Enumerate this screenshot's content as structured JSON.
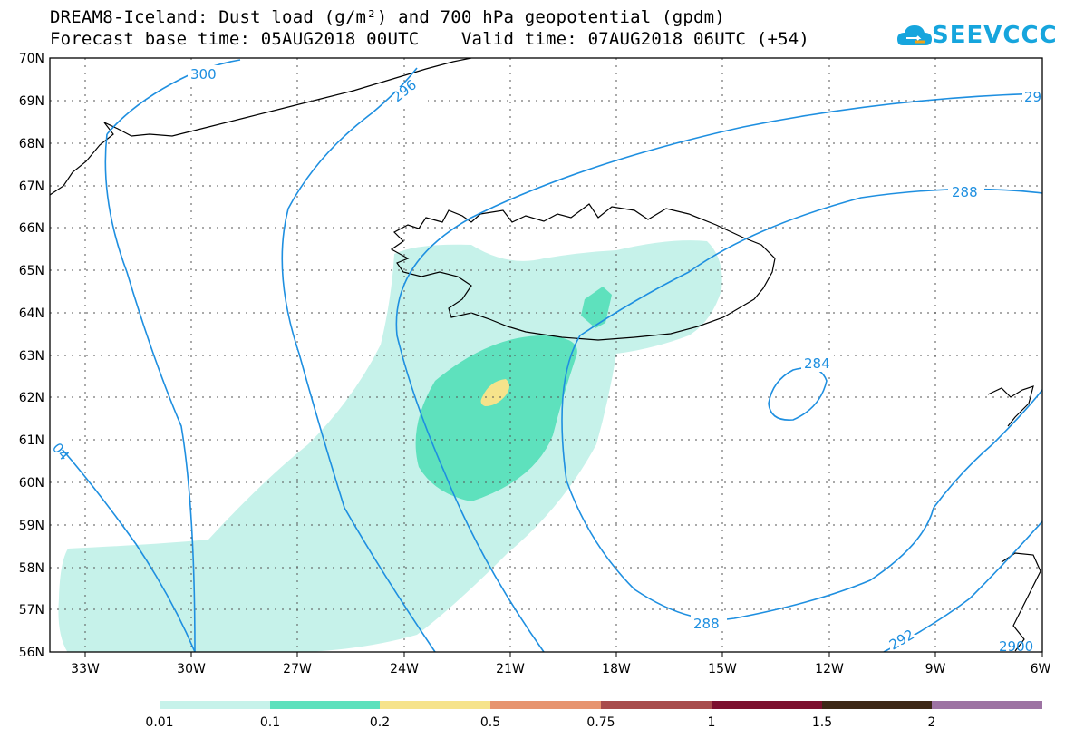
{
  "header": {
    "title_line1": "DREAM8-Iceland: Dust load (g/m²) and 700 hPa geopotential (gpdm)",
    "title_line2": "Forecast base time: 05AUG2018 00UTC    Valid time: 07AUG2018 06UTC (+54)",
    "logo_text": "SEEVCCC"
  },
  "map": {
    "lon_labels": [
      "33W",
      "30W",
      "27W",
      "24W",
      "21W",
      "18W",
      "15W",
      "12W",
      "9W",
      "6W"
    ],
    "lat_labels": [
      "70N",
      "69N",
      "68N",
      "67N",
      "66N",
      "65N",
      "64N",
      "63N",
      "62N",
      "61N",
      "60N",
      "59N",
      "58N",
      "57N",
      "56N"
    ],
    "contour_labels": [
      "300",
      "296",
      "29",
      "288",
      "284",
      "288",
      "292",
      "2900",
      "04"
    ]
  },
  "colorbar": {
    "levels": [
      "0.01",
      "0.1",
      "0.2",
      "0.5",
      "0.75",
      "1",
      "1.5",
      "2"
    ],
    "colors": [
      "#c6f2ea",
      "#5ee1bd",
      "#f6e38b",
      "#e7946f",
      "#a84c4c",
      "#7c0f2e",
      "#3d2716",
      "#9d73a3"
    ]
  },
  "style": {
    "contour_color": "#1e8fe0",
    "logo_color": "#16a5dd"
  }
}
